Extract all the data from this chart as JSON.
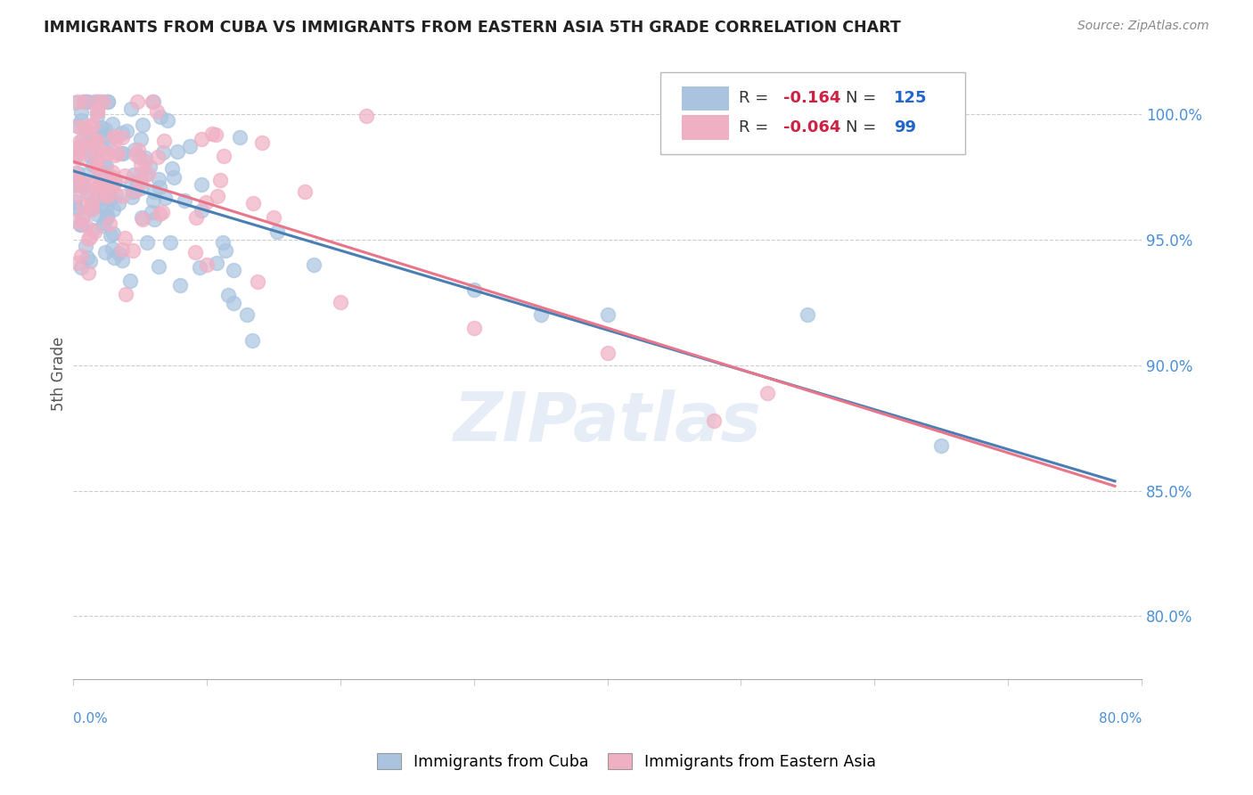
{
  "title": "IMMIGRANTS FROM CUBA VS IMMIGRANTS FROM EASTERN ASIA 5TH GRADE CORRELATION CHART",
  "source": "Source: ZipAtlas.com",
  "ylabel": "5th Grade",
  "ytick_labels": [
    "100.0%",
    "95.0%",
    "90.0%",
    "85.0%",
    "80.0%"
  ],
  "ytick_values": [
    1.0,
    0.95,
    0.9,
    0.85,
    0.8
  ],
  "xlim": [
    0.0,
    0.8
  ],
  "ylim": [
    0.775,
    1.018
  ],
  "legend_r_blue": "-0.164",
  "legend_n_blue": "125",
  "legend_r_pink": "-0.064",
  "legend_n_pink": "99",
  "blue_color": "#aac4e0",
  "pink_color": "#f0b0c4",
  "blue_line_color": "#4a7fb5",
  "pink_line_color": "#e8758a",
  "blue_label": "Immigrants from Cuba",
  "pink_label": "Immigrants from Eastern Asia",
  "title_color": "#222222",
  "source_color": "#888888",
  "axis_color": "#4a90d9",
  "watermark": "ZIPatlas",
  "seed": 7
}
